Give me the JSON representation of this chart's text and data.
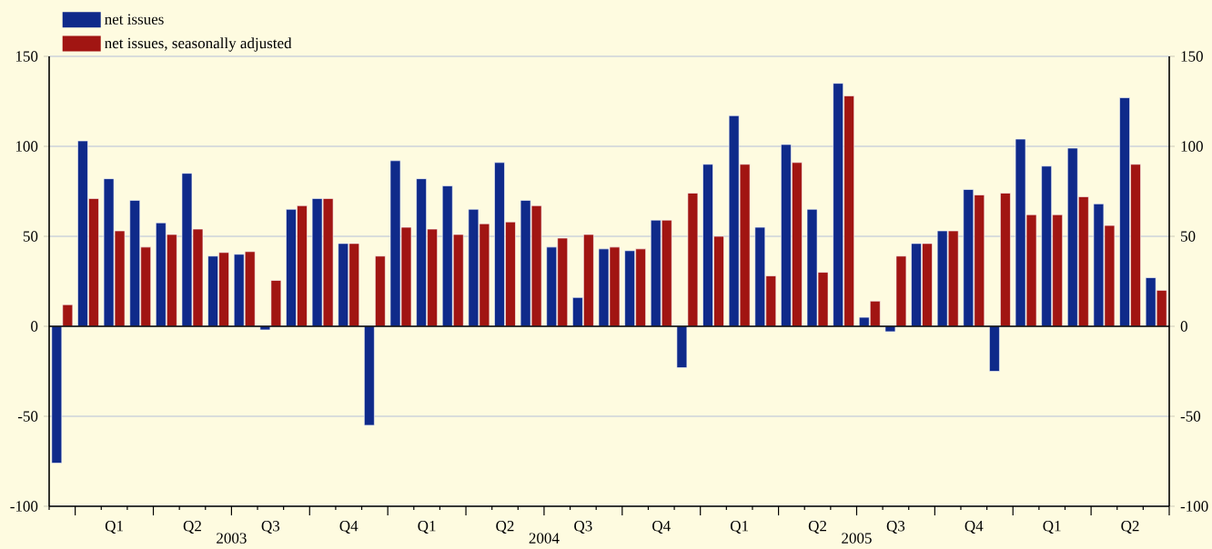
{
  "chart_data": {
    "type": "bar",
    "categories": [
      null,
      null,
      "Q1",
      null,
      null,
      "Q2",
      null,
      null,
      "Q3",
      null,
      null,
      "Q4",
      null,
      null,
      "Q1",
      null,
      null,
      "Q2",
      null,
      null,
      "Q3",
      null,
      null,
      "Q4",
      null,
      null,
      "Q1",
      null,
      null,
      "Q2",
      null,
      null,
      "Q3",
      null,
      null,
      "Q4",
      null,
      null,
      "Q1",
      null,
      null,
      "Q2",
      null
    ],
    "series": [
      {
        "name": "net issues",
        "color": "#0f2a8a",
        "values": [
          -76,
          103,
          82,
          70,
          57.5,
          85,
          39,
          40,
          -2,
          65,
          71,
          46,
          -55,
          92,
          82,
          78,
          65,
          91,
          70,
          44,
          16,
          43,
          42,
          59,
          -23,
          90,
          117,
          55,
          101,
          65,
          135,
          5,
          -3,
          46,
          53,
          76,
          -25,
          104,
          89,
          99,
          68,
          127,
          27
        ]
      },
      {
        "name": "net issues, seasonally adjusted",
        "color": "#a11512",
        "values": [
          12,
          71,
          53,
          44,
          51,
          54,
          41,
          41.5,
          25.5,
          67,
          71,
          46,
          39,
          55,
          54,
          51,
          57,
          58,
          67,
          49,
          51,
          44,
          43,
          59,
          74,
          50,
          90,
          28,
          91,
          30,
          128,
          14,
          39,
          46,
          53,
          73,
          74,
          62,
          62,
          72,
          56,
          90,
          20
        ]
      }
    ],
    "ylim": [
      -100,
      150
    ],
    "yticks": [
      -100,
      -50,
      0,
      50,
      100,
      150
    ],
    "y2lim": [
      -100,
      150
    ],
    "y2ticks": [
      -100,
      -50,
      0,
      50,
      100,
      150
    ],
    "grid": "y",
    "legend": "top left",
    "annotations": [
      "2003",
      "2004",
      "2005"
    ]
  }
}
